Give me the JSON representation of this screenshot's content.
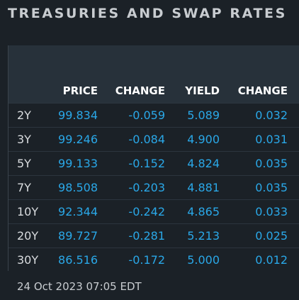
{
  "title": "TREASURIES AND SWAP RATES",
  "table": {
    "headers": {
      "price": "PRICE",
      "change": "CHANGE",
      "yield": "YIELD",
      "change2": "CHANGE"
    },
    "rows": [
      {
        "term": "2Y",
        "price": "99.834",
        "change": "-0.059",
        "yield": "5.089",
        "change2": "0.032"
      },
      {
        "term": "3Y",
        "price": "99.246",
        "change": "-0.084",
        "yield": "4.900",
        "change2": "0.031"
      },
      {
        "term": "5Y",
        "price": "99.133",
        "change": "-0.152",
        "yield": "4.824",
        "change2": "0.035"
      },
      {
        "term": "7Y",
        "price": "98.508",
        "change": "-0.203",
        "yield": "4.881",
        "change2": "0.035"
      },
      {
        "term": "10Y",
        "price": "92.344",
        "change": "-0.242",
        "yield": "4.865",
        "change2": "0.033"
      },
      {
        "term": "20Y",
        "price": "89.727",
        "change": "-0.281",
        "yield": "5.213",
        "change2": "0.025"
      },
      {
        "term": "30Y",
        "price": "86.516",
        "change": "-0.172",
        "yield": "5.000",
        "change2": "0.012"
      }
    ]
  },
  "timestamp": "24 Oct 2023 07:05 EDT",
  "colors": {
    "accent": "#2aa8e8",
    "background": "#1b2127",
    "header_band": "#27313a"
  }
}
